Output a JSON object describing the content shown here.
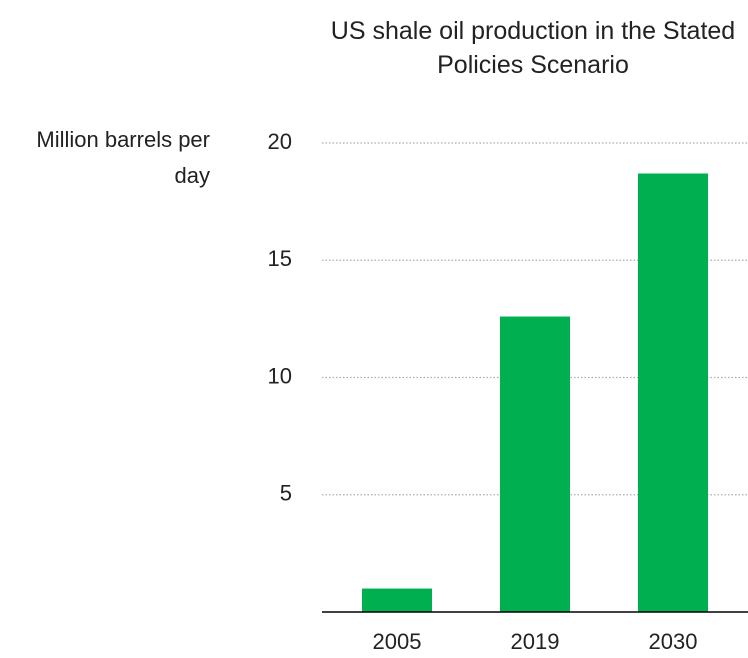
{
  "chart_data": {
    "type": "bar",
    "title": "US shale oil production in the Stated Policies Scenario",
    "y_label": "Million barrels per day",
    "categories": [
      "2005",
      "2019",
      "2030"
    ],
    "values": [
      1.0,
      12.6,
      18.7
    ],
    "color": "#00b050",
    "ylim": [
      0,
      20
    ],
    "yticks": [
      5,
      10,
      15,
      20
    ],
    "grid": true
  }
}
